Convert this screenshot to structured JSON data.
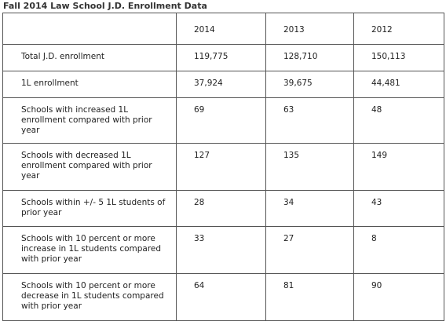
{
  "title": "Fall 2014 Law School J.D. Enrollment Data",
  "columns": [
    "",
    "2014",
    "2013",
    "2012"
  ],
  "rows": [
    {
      "label": "Total J.D. enrollment",
      "values": [
        "119,775",
        "128,710",
        "150,113"
      ]
    },
    {
      "label": "1L enrollment",
      "values": [
        "37,924",
        "39,675",
        "44,481"
      ]
    },
    {
      "label": "Schools with increased 1L enrollment compared with prior year",
      "values": [
        "69",
        "63",
        "48"
      ]
    },
    {
      "label": "Schools with decreased 1L enrollment compared with prior year",
      "values": [
        "127",
        "135",
        "149"
      ]
    },
    {
      "label": "Schools within +/- 5 1L students of prior year",
      "values": [
        "28",
        "34",
        "43"
      ]
    },
    {
      "label": "Schools with 10 percent or more increase in 1L students compared with prior year",
      "values": [
        "33",
        "27",
        "8"
      ]
    },
    {
      "label": "Schools with 10 percent or more decrease in 1L students compared with prior year",
      "values": [
        "64",
        "81",
        "90"
      ]
    }
  ]
}
